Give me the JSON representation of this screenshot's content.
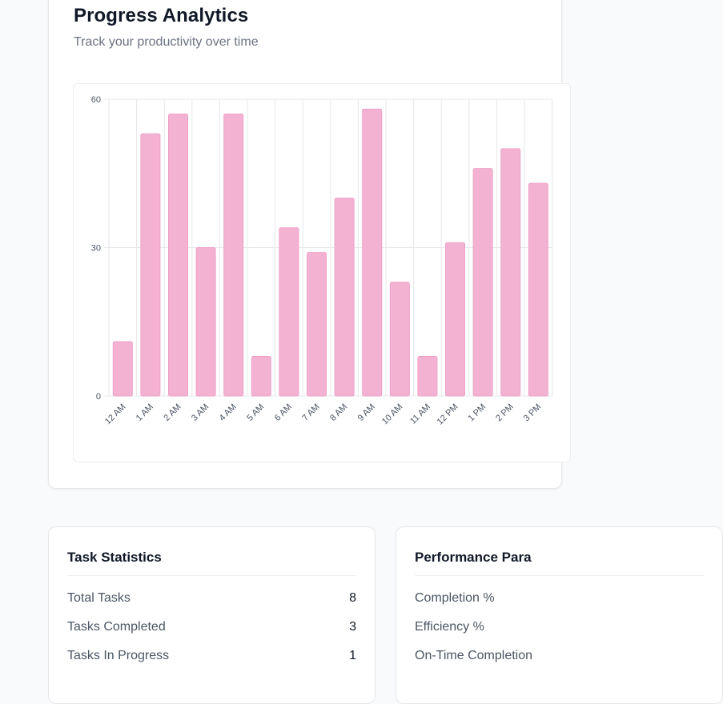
{
  "header": {
    "title": "Progress Analytics",
    "subtitle": "Track your productivity over time"
  },
  "colors": {
    "bar_fill": "#f4b2d3",
    "bar_stroke": "#eda2c7",
    "grid": "#e5e7eb",
    "tick_text": "#4b5563"
  },
  "chart_data": {
    "type": "bar",
    "categories": [
      "12 AM",
      "1 AM",
      "2 AM",
      "3 AM",
      "4 AM",
      "5 AM",
      "6 AM",
      "7 AM",
      "8 AM",
      "9 AM",
      "10 AM",
      "11 AM",
      "12 PM",
      "1 PM",
      "2 PM",
      "3 PM"
    ],
    "values": [
      11,
      53,
      57,
      30,
      57,
      8,
      34,
      29,
      40,
      58,
      23,
      8,
      31,
      46,
      50,
      43
    ],
    "y_ticks": [
      0,
      30,
      60
    ],
    "ylim": [
      0,
      60
    ],
    "grid": true,
    "title": "",
    "xlabel": "",
    "ylabel": ""
  },
  "task_statistics": {
    "title": "Task Statistics",
    "rows": [
      {
        "label": "Total Tasks",
        "value": "8"
      },
      {
        "label": "Tasks Completed",
        "value": "3"
      },
      {
        "label": "Tasks In Progress",
        "value": "1"
      }
    ]
  },
  "performance": {
    "title": "Performance Para",
    "rows": [
      {
        "label": "Completion %"
      },
      {
        "label": "Efficiency %"
      },
      {
        "label": "On-Time Completion"
      }
    ]
  }
}
